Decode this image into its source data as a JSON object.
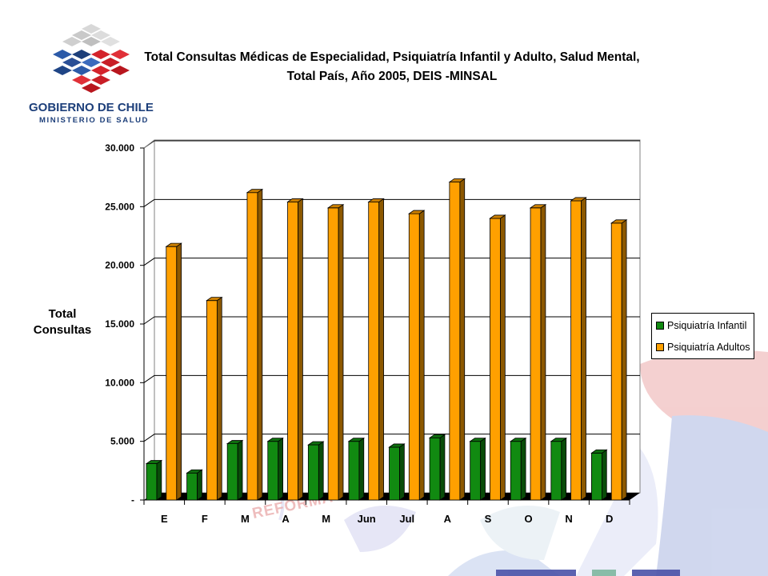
{
  "logo": {
    "line1": "GOBIERNO DE CHILE",
    "line2": "MINISTERIO DE SALUD"
  },
  "watermark_text": "REFORMA DE LA SALUD",
  "colors": {
    "infantil": "#118a11",
    "adultos": "#ffa000",
    "floor": "#000000"
  },
  "chart_data": {
    "type": "bar",
    "title": [
      "Total Consultas Médicas de Especialidad, Psiquiatría Infantil y Adulto, Salud Mental,",
      "Total País, Año 2005, DEIS -MINSAL"
    ],
    "ylabel": [
      "Total",
      "Consultas"
    ],
    "xlabel": "",
    "categories": [
      "E",
      "F",
      "M",
      "A",
      "M",
      "Jun",
      "Jul",
      "A",
      "S",
      "O",
      "N",
      "D"
    ],
    "series": [
      {
        "name": "Psiquiatría Infantil",
        "values": [
          3100,
          2300,
          4800,
          5000,
          4700,
          5000,
          4500,
          5300,
          5000,
          5000,
          5000,
          4000
        ]
      },
      {
        "name": "Psiquiatría Adultos",
        "values": [
          21600,
          17000,
          26200,
          25400,
          24900,
          25400,
          24400,
          27100,
          24000,
          24900,
          25500,
          23600
        ]
      }
    ],
    "ylim": [
      0,
      30000
    ],
    "yticks": [
      0,
      5000,
      10000,
      15000,
      20000,
      25000,
      30000
    ],
    "ytick_labels": [
      "-",
      "5.000",
      "10.000",
      "15.000",
      "20.000",
      "25.000",
      "30.000"
    ],
    "grid": true,
    "legend_position": "right"
  }
}
